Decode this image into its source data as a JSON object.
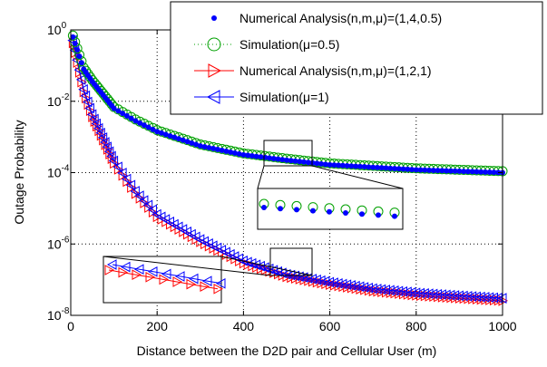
{
  "chart_data": {
    "type": "scatter",
    "xlabel": "Distance between the D2D pair and Cellular User (m)",
    "ylabel": "Outage Probability",
    "xlim": [
      0,
      1000
    ],
    "ylim_log10": [
      -8,
      0
    ],
    "yscale": "log",
    "grid": true,
    "legend_position": "top-right",
    "xticks": [
      "0",
      "200",
      "400",
      "600",
      "800",
      "1000"
    ],
    "yticks": [
      {
        "base": "10",
        "exp": "0",
        "log10": 0
      },
      {
        "base": "10",
        "exp": "-2",
        "log10": -2
      },
      {
        "base": "10",
        "exp": "-4",
        "log10": -4
      },
      {
        "base": "10",
        "exp": "-6",
        "log10": -6
      },
      {
        "base": "10",
        "exp": "-8",
        "log10": -8
      }
    ],
    "series": [
      {
        "name": "Numerical Analysis(n,m,μ)=(1,4,0.5)",
        "marker": "dot",
        "color": "#0000ff",
        "linestyle": "none",
        "group": "mu05",
        "offset": 0
      },
      {
        "name": "Simulation(μ=0.5)",
        "marker": "circle",
        "color": "#00a000",
        "linestyle": "dotted",
        "group": "mu05",
        "offset": 0.04
      },
      {
        "name": "Numerical Analysis(n,m,μ)=(1,2,1)",
        "marker": "triangle-right",
        "color": "#ff0000",
        "linestyle": "solid",
        "group": "mu1",
        "offset": -0.04
      },
      {
        "name": "Simulation(μ=1)",
        "marker": "triangle-left",
        "color": "#0000ff",
        "linestyle": "solid",
        "group": "mu1",
        "offset": 0.03
      }
    ],
    "curve_anchors": {
      "x": [
        10,
        30,
        50,
        100,
        150,
        200,
        300,
        400,
        500,
        600,
        700,
        800,
        900,
        1000
      ],
      "mu05_log10": [
        -0.38,
        -1.1,
        -1.45,
        -2.2,
        -2.55,
        -2.85,
        -3.25,
        -3.5,
        -3.65,
        -3.78,
        -3.85,
        -3.92,
        -3.96,
        -4.0
      ],
      "mu1_log10": [
        -0.6,
        -1.7,
        -2.4,
        -3.7,
        -4.55,
        -5.2,
        -5.9,
        -6.5,
        -6.88,
        -7.1,
        -7.28,
        -7.4,
        -7.48,
        -7.55
      ]
    },
    "annotations": [
      "zoom-inset-mu05",
      "zoom-inset-mu1"
    ]
  }
}
